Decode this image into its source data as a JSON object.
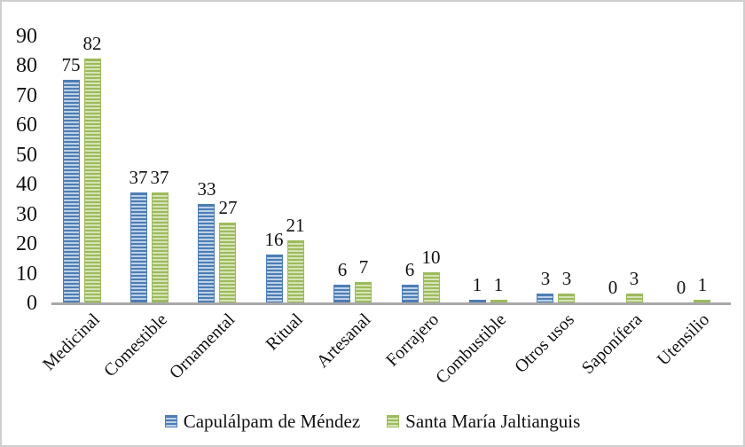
{
  "figure": {
    "background": "#ffffff",
    "border_color": "#cfcfcf"
  },
  "chart_data": {
    "type": "bar",
    "title": "",
    "xlabel": "",
    "ylabel": "",
    "categories": [
      "Medicinal",
      "Comestible",
      "Ornamental",
      "Ritual",
      "Artesanal",
      "Forrajero",
      "Combustible",
      "Otros usos",
      "Saponífera",
      "Utensilio"
    ],
    "series": [
      {
        "name": "Capulálpam de Méndez",
        "values": [
          75,
          37,
          33,
          16,
          6,
          6,
          1,
          3,
          0,
          0
        ],
        "color": "#4d7db4",
        "stripe_color": "#bcd0e6"
      },
      {
        "name": "Santa María Jaltianguis",
        "values": [
          82,
          37,
          27,
          21,
          7,
          10,
          1,
          3,
          3,
          1
        ],
        "color": "#9cbb5c",
        "stripe_color": "#d6e3b6"
      }
    ],
    "ylim": [
      0,
      90
    ],
    "yticks": [
      0,
      10,
      20,
      30,
      40,
      50,
      60,
      70,
      80,
      90
    ],
    "grid": false,
    "data_labels": true,
    "legend_position": "bottom",
    "axis_color": "#a8a8a8",
    "text_color": "#111111"
  }
}
